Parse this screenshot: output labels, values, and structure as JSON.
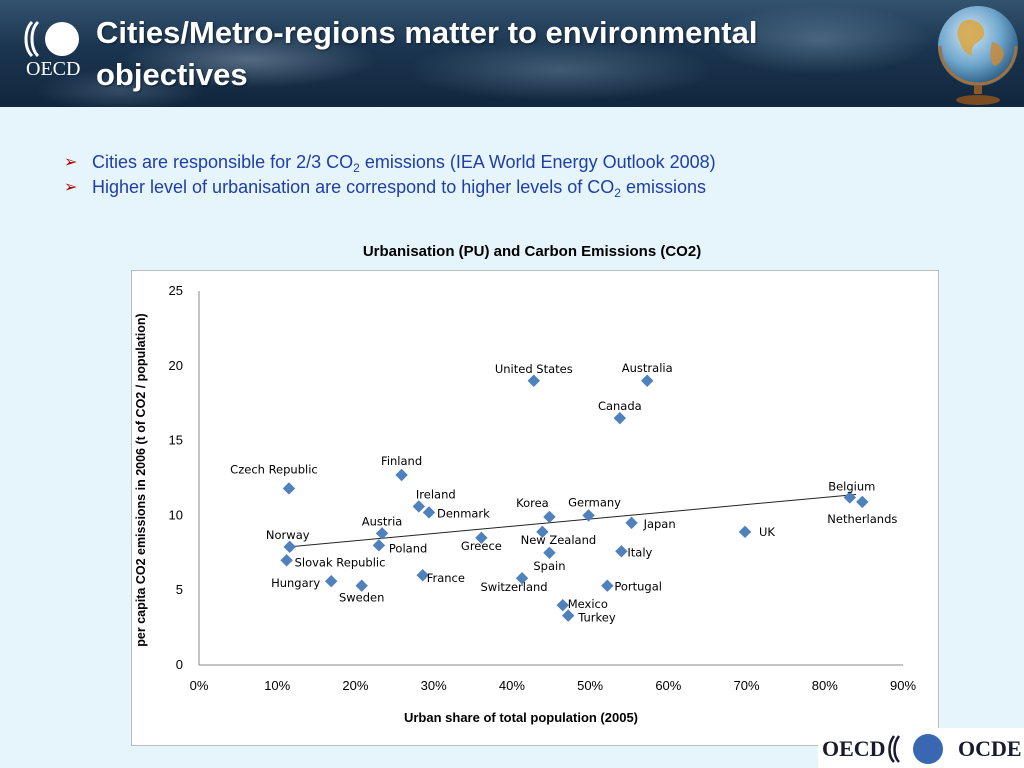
{
  "header": {
    "title_line1": "Cities/Metro-regions matter to environmental",
    "title_line2": "objectives",
    "logo_text": "OECD"
  },
  "bullets": [
    {
      "pre": "Cities are responsible for 2/3 CO",
      "sub": "2",
      "post": " emissions (IEA World Energy Outlook 2008)"
    },
    {
      "pre": "Higher level of urbanisation are correspond to higher levels of CO",
      "sub": "2",
      "post": " emissions"
    }
  ],
  "footer": {
    "left": "OECD",
    "right": "OCDE"
  },
  "colors": {
    "marker": "#4f81bd",
    "bullet_text": "#1f3ea8",
    "bullet_arrow": "#b20000"
  },
  "chart_data": {
    "type": "scatter",
    "title": "Urbanisation (PU) and Carbon Emissions (CO2)",
    "xlabel": "Urban share of total population (2005)",
    "ylabel": "per capita CO2 emissions in 2006 (t of CO2 / population)",
    "xlim": [
      0,
      90
    ],
    "ylim": [
      0,
      25
    ],
    "x_ticks": [
      "0%",
      "10%",
      "20%",
      "30%",
      "40%",
      "50%",
      "60%",
      "70%",
      "80%",
      "90%"
    ],
    "y_ticks": [
      "0",
      "5",
      "10",
      "15",
      "20",
      "25"
    ],
    "grid": false,
    "legend": "none",
    "trendline": {
      "type": "linear",
      "x": [
        11.5,
        84
      ],
      "y": [
        7.9,
        11.4
      ]
    },
    "points": [
      {
        "name": "United States",
        "x": 42.8,
        "y": 19.0
      },
      {
        "name": "Australia",
        "x": 57.3,
        "y": 19.0
      },
      {
        "name": "Canada",
        "x": 53.8,
        "y": 16.5
      },
      {
        "name": "Czech Republic",
        "x": 11.5,
        "y": 11.8
      },
      {
        "name": "Finland",
        "x": 25.9,
        "y": 12.7
      },
      {
        "name": "Ireland",
        "x": 28.1,
        "y": 10.6
      },
      {
        "name": "Denmark",
        "x": 29.4,
        "y": 10.2
      },
      {
        "name": "Korea",
        "x": 44.8,
        "y": 9.9
      },
      {
        "name": "Germany",
        "x": 49.8,
        "y": 10.0
      },
      {
        "name": "Japan",
        "x": 55.3,
        "y": 9.5
      },
      {
        "name": "Belgium",
        "x": 83.2,
        "y": 11.2
      },
      {
        "name": "Netherlands",
        "x": 84.8,
        "y": 10.9
      },
      {
        "name": "UK",
        "x": 69.8,
        "y": 8.9
      },
      {
        "name": "Austria",
        "x": 23.4,
        "y": 8.8
      },
      {
        "name": "Norway",
        "x": 11.6,
        "y": 7.9
      },
      {
        "name": "Poland",
        "x": 23.0,
        "y": 8.0
      },
      {
        "name": "Greece",
        "x": 36.1,
        "y": 8.5
      },
      {
        "name": "New Zealand",
        "x": 43.9,
        "y": 8.9
      },
      {
        "name": "Italy",
        "x": 54.0,
        "y": 7.6
      },
      {
        "name": "Spain",
        "x": 44.8,
        "y": 7.5
      },
      {
        "name": "Slovak Republic",
        "x": 11.2,
        "y": 7.0
      },
      {
        "name": "Hungary",
        "x": 16.9,
        "y": 5.6
      },
      {
        "name": "Sweden",
        "x": 20.8,
        "y": 5.3
      },
      {
        "name": "France",
        "x": 28.6,
        "y": 6.0
      },
      {
        "name": "Switzerland",
        "x": 41.3,
        "y": 5.8
      },
      {
        "name": "Portugal",
        "x": 52.2,
        "y": 5.3
      },
      {
        "name": "Mexico",
        "x": 46.5,
        "y": 4.0
      },
      {
        "name": "Turkey",
        "x": 47.2,
        "y": 3.3
      }
    ]
  }
}
